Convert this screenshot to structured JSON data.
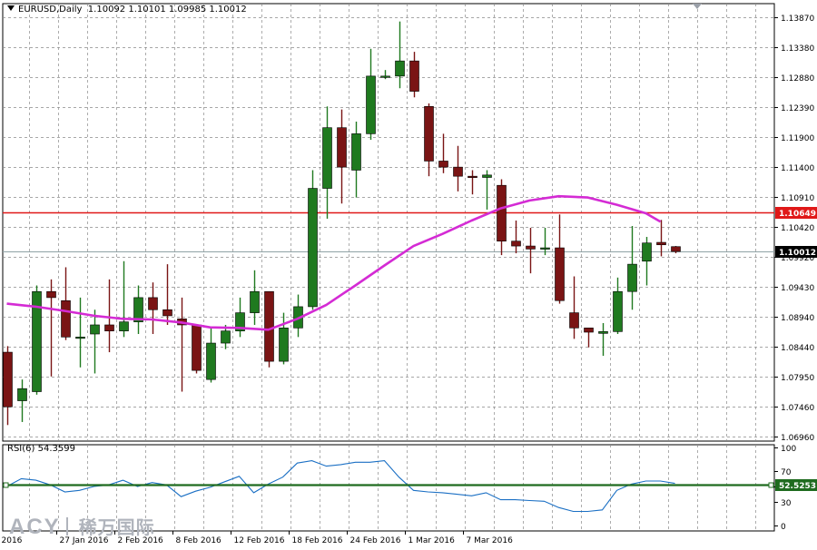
{
  "header": {
    "symbol": "EURUSD,Daily",
    "ohlc": "1.10092 1.10101 1.09985 1.10012"
  },
  "rsi_label": "RSI(6) 54.3599",
  "logo": {
    "brand": "ACY",
    "brand_cn": "稀万国际"
  },
  "colors": {
    "bull": "#1f7a1f",
    "bear": "#7a1414",
    "ma": "#d42bd4",
    "resistance": "#e01818",
    "rsi_line": "#1a6fc4",
    "rsi_level": "#1f6b1f",
    "grid": "#8a8a8a",
    "current_price_line": "#8fa3a6"
  },
  "chart_data": [
    {
      "type": "candlestick",
      "title": "EURUSD,Daily",
      "y_ticks": [
        "1.13870",
        "1.13380",
        "1.12880",
        "1.12390",
        "1.11900",
        "1.11400",
        "1.10910",
        "1.10420",
        "1.09920",
        "1.09430",
        "1.08940",
        "1.08440",
        "1.07950",
        "1.07460",
        "1.06960"
      ],
      "ylim": [
        1.0666,
        1.1405
      ],
      "x_tick_labels": [
        "2016",
        "27 Jan 2016",
        "2 Feb 2016",
        "8 Feb 2016",
        "12 Feb 2016",
        "18 Feb 2016",
        "24 Feb 2016",
        "1 Mar 2016",
        "7 Mar 2016"
      ],
      "x_tick_bars": [
        -0.6,
        3.4,
        7.4,
        11.4,
        15.4,
        19.4,
        23.4,
        27.4,
        31.4
      ],
      "grid": true,
      "price_labels": [
        {
          "name": "resistance",
          "value": 1.10649,
          "text": "1.10649"
        },
        {
          "name": "current",
          "value": 1.10012,
          "text": "1.10012"
        }
      ],
      "candles": [
        {
          "o": 1.0835,
          "h": 1.0845,
          "l": 1.0715,
          "c": 1.0745
        },
        {
          "o": 1.0755,
          "h": 1.079,
          "l": 1.072,
          "c": 1.0775
        },
        {
          "o": 1.077,
          "h": 1.0945,
          "l": 1.0765,
          "c": 1.0935
        },
        {
          "o": 1.0935,
          "h": 1.0955,
          "l": 1.0795,
          "c": 1.0925
        },
        {
          "o": 1.092,
          "h": 1.0975,
          "l": 1.0855,
          "c": 1.086
        },
        {
          "o": 1.086,
          "h": 1.0925,
          "l": 1.081,
          "c": 1.086
        },
        {
          "o": 1.0865,
          "h": 1.0905,
          "l": 1.08,
          "c": 1.088
        },
        {
          "o": 1.088,
          "h": 1.0955,
          "l": 1.0835,
          "c": 1.087
        },
        {
          "o": 1.087,
          "h": 1.0985,
          "l": 1.086,
          "c": 1.0885
        },
        {
          "o": 1.0885,
          "h": 1.0945,
          "l": 1.0865,
          "c": 1.0925
        },
        {
          "o": 1.0925,
          "h": 1.095,
          "l": 1.0865,
          "c": 1.0905
        },
        {
          "o": 1.0905,
          "h": 1.098,
          "l": 1.088,
          "c": 1.0895
        },
        {
          "o": 1.089,
          "h": 1.0925,
          "l": 1.077,
          "c": 1.088
        },
        {
          "o": 1.088,
          "h": 1.088,
          "l": 1.08,
          "c": 1.0805
        },
        {
          "o": 1.079,
          "h": 1.0875,
          "l": 1.0785,
          "c": 1.085
        },
        {
          "o": 1.085,
          "h": 1.088,
          "l": 1.084,
          "c": 1.087
        },
        {
          "o": 1.087,
          "h": 1.0925,
          "l": 1.086,
          "c": 1.09
        },
        {
          "o": 1.09,
          "h": 1.097,
          "l": 1.088,
          "c": 1.0935
        },
        {
          "o": 1.0935,
          "h": 1.0935,
          "l": 1.081,
          "c": 1.082
        },
        {
          "o": 1.082,
          "h": 1.09,
          "l": 1.0815,
          "c": 1.0875
        },
        {
          "o": 1.0875,
          "h": 1.093,
          "l": 1.086,
          "c": 1.091
        },
        {
          "o": 1.091,
          "h": 1.1135,
          "l": 1.0905,
          "c": 1.1105
        },
        {
          "o": 1.1105,
          "h": 1.124,
          "l": 1.1055,
          "c": 1.1205
        },
        {
          "o": 1.1205,
          "h": 1.1235,
          "l": 1.108,
          "c": 1.114
        },
        {
          "o": 1.1135,
          "h": 1.1215,
          "l": 1.109,
          "c": 1.1195
        },
        {
          "o": 1.1195,
          "h": 1.1335,
          "l": 1.1185,
          "c": 1.129
        },
        {
          "o": 1.129,
          "h": 1.13,
          "l": 1.1285,
          "c": 1.129
        },
        {
          "o": 1.129,
          "h": 1.138,
          "l": 1.127,
          "c": 1.1315
        },
        {
          "o": 1.1315,
          "h": 1.133,
          "l": 1.1255,
          "c": 1.1265
        },
        {
          "o": 1.124,
          "h": 1.1245,
          "l": 1.1125,
          "c": 1.115
        },
        {
          "o": 1.115,
          "h": 1.1195,
          "l": 1.113,
          "c": 1.114
        },
        {
          "o": 1.114,
          "h": 1.1175,
          "l": 1.11,
          "c": 1.1125
        },
        {
          "o": 1.1125,
          "h": 1.1135,
          "l": 1.1095,
          "c": 1.1123
        },
        {
          "o": 1.1123,
          "h": 1.1135,
          "l": 1.107,
          "c": 1.1127
        },
        {
          "o": 1.111,
          "h": 1.112,
          "l": 1.0995,
          "c": 1.1018
        },
        {
          "o": 1.1018,
          "h": 1.1052,
          "l": 1.0998,
          "c": 1.101
        },
        {
          "o": 1.101,
          "h": 1.104,
          "l": 1.0965,
          "c": 1.1005
        },
        {
          "o": 1.1005,
          "h": 1.104,
          "l": 1.0995,
          "c": 1.1007
        },
        {
          "o": 1.1007,
          "h": 1.1062,
          "l": 1.0915,
          "c": 1.092
        },
        {
          "o": 1.09,
          "h": 1.096,
          "l": 1.0857,
          "c": 1.0875
        },
        {
          "o": 1.0875,
          "h": 1.0875,
          "l": 1.0843,
          "c": 1.0868
        },
        {
          "o": 1.0866,
          "h": 1.0883,
          "l": 1.0829,
          "c": 1.0869
        },
        {
          "o": 1.0869,
          "h": 1.0958,
          "l": 1.0865,
          "c": 1.0935
        },
        {
          "o": 1.0935,
          "h": 1.1043,
          "l": 1.0905,
          "c": 1.098
        },
        {
          "o": 1.0985,
          "h": 1.1025,
          "l": 1.0945,
          "c": 1.1015
        },
        {
          "o": 1.1016,
          "h": 1.1053,
          "l": 1.0993,
          "c": 1.1012
        },
        {
          "o": 1.1009,
          "h": 1.101,
          "l": 1.0998,
          "c": 1.1001
        }
      ],
      "ma": [
        {
          "bar": 0,
          "v": 1.0915
        },
        {
          "bar": 2,
          "v": 1.091
        },
        {
          "bar": 4,
          "v": 1.0903
        },
        {
          "bar": 6,
          "v": 1.0895
        },
        {
          "bar": 8,
          "v": 1.089
        },
        {
          "bar": 10,
          "v": 1.0889
        },
        {
          "bar": 12,
          "v": 1.0884
        },
        {
          "bar": 14,
          "v": 1.0876
        },
        {
          "bar": 16,
          "v": 1.0875
        },
        {
          "bar": 18,
          "v": 1.0872
        },
        {
          "bar": 20,
          "v": 1.089
        },
        {
          "bar": 22,
          "v": 1.0913
        },
        {
          "bar": 24,
          "v": 1.0945
        },
        {
          "bar": 26,
          "v": 1.0978
        },
        {
          "bar": 28,
          "v": 1.101
        },
        {
          "bar": 30,
          "v": 1.103
        },
        {
          "bar": 32,
          "v": 1.1052
        },
        {
          "bar": 34,
          "v": 1.1072
        },
        {
          "bar": 36,
          "v": 1.1085
        },
        {
          "bar": 38,
          "v": 1.1092
        },
        {
          "bar": 40,
          "v": 1.109
        },
        {
          "bar": 42,
          "v": 1.1078
        },
        {
          "bar": 44,
          "v": 1.1064
        },
        {
          "bar": 45,
          "v": 1.105
        }
      ]
    },
    {
      "type": "line",
      "title": "RSI(6) 54.3599",
      "ylim": [
        0,
        100
      ],
      "y_ticks": [
        "100",
        "70",
        "50",
        "30",
        "0"
      ],
      "level": {
        "value": 52.5253,
        "text": "52.5253"
      },
      "values": [
        {
          "bar": 0,
          "v": 50
        },
        {
          "bar": 1,
          "v": 60
        },
        {
          "bar": 2,
          "v": 58
        },
        {
          "bar": 3,
          "v": 52
        },
        {
          "bar": 4,
          "v": 43
        },
        {
          "bar": 5,
          "v": 45
        },
        {
          "bar": 6,
          "v": 50
        },
        {
          "bar": 7,
          "v": 52
        },
        {
          "bar": 8,
          "v": 58
        },
        {
          "bar": 9,
          "v": 50
        },
        {
          "bar": 10,
          "v": 55
        },
        {
          "bar": 11,
          "v": 52
        },
        {
          "bar": 12,
          "v": 37
        },
        {
          "bar": 13,
          "v": 44
        },
        {
          "bar": 14,
          "v": 49
        },
        {
          "bar": 15,
          "v": 56
        },
        {
          "bar": 16,
          "v": 63
        },
        {
          "bar": 17,
          "v": 42
        },
        {
          "bar": 18,
          "v": 53
        },
        {
          "bar": 19,
          "v": 62
        },
        {
          "bar": 20,
          "v": 80
        },
        {
          "bar": 21,
          "v": 83
        },
        {
          "bar": 22,
          "v": 76
        },
        {
          "bar": 23,
          "v": 78
        },
        {
          "bar": 24,
          "v": 81
        },
        {
          "bar": 25,
          "v": 81
        },
        {
          "bar": 26,
          "v": 83
        },
        {
          "bar": 27,
          "v": 62
        },
        {
          "bar": 28,
          "v": 45
        },
        {
          "bar": 29,
          "v": 43
        },
        {
          "bar": 30,
          "v": 42
        },
        {
          "bar": 31,
          "v": 40
        },
        {
          "bar": 32,
          "v": 38
        },
        {
          "bar": 33,
          "v": 42
        },
        {
          "bar": 34,
          "v": 33
        },
        {
          "bar": 35,
          "v": 33
        },
        {
          "bar": 36,
          "v": 32
        },
        {
          "bar": 37,
          "v": 31
        },
        {
          "bar": 38,
          "v": 23
        },
        {
          "bar": 39,
          "v": 18
        },
        {
          "bar": 40,
          "v": 18
        },
        {
          "bar": 41,
          "v": 20
        },
        {
          "bar": 42,
          "v": 45
        },
        {
          "bar": 43,
          "v": 53
        },
        {
          "bar": 44,
          "v": 57
        },
        {
          "bar": 45,
          "v": 57
        },
        {
          "bar": 46,
          "v": 54
        }
      ]
    }
  ]
}
